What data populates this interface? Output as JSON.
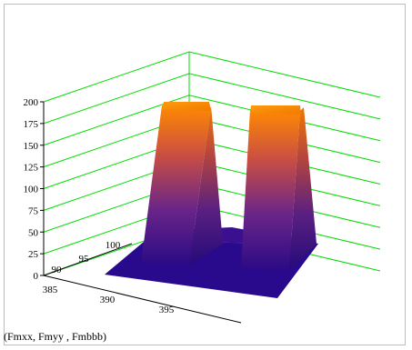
{
  "chart_data": {
    "type": "surface3d",
    "caption": "(Fmxx, Fmyy , Fmbbb)",
    "z_axis": {
      "ticks": [
        0,
        25,
        50,
        75,
        100,
        125,
        150,
        175,
        200
      ],
      "tick_labels": [
        "0",
        "25",
        "50",
        "75",
        "100",
        "125",
        "150",
        "175",
        "200"
      ],
      "range": [
        0,
        200
      ]
    },
    "x_axis": {
      "tick_labels": [
        "385",
        "390",
        "395"
      ]
    },
    "y_axis": {
      "tick_labels": [
        "90",
        "95",
        "100"
      ]
    },
    "grid_color": "#00dd00",
    "colormap": [
      "#2a0a86",
      "#7a2a8a",
      "#d45a3a",
      "#ff8a00"
    ],
    "surface": {
      "base_level": 0,
      "peaks": [
        {
          "name": "left-peak",
          "height": 200
        },
        {
          "name": "right-peak",
          "height": 200
        }
      ]
    }
  }
}
